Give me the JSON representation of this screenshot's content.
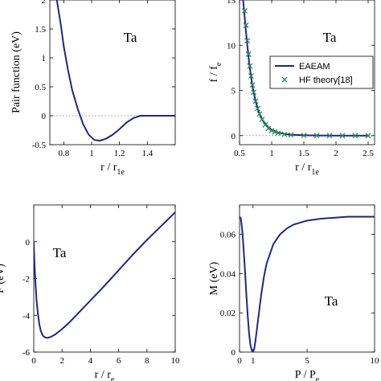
{
  "style": {
    "curve_color": "#1f2a7a",
    "marker_color": "#2e8b57",
    "zero_line_color": "#999999"
  },
  "chart_data": [
    {
      "type": "line",
      "panel": "top-left",
      "annotation": "Ta",
      "xlabel": "r / r",
      "xlabel_sub": "1e",
      "ylabel": "Pair function (eV)",
      "xlim": [
        0.7,
        1.6
      ],
      "ylim": [
        -0.5,
        2
      ],
      "xticks": [
        0.8,
        1,
        1.2,
        1.4
      ],
      "xtick_labels": [
        "0.8",
        "1",
        "1.2",
        "1.4"
      ],
      "yticks": [
        -0.5,
        0,
        0.5,
        1,
        1.5,
        2
      ],
      "ytick_labels": [
        "-0.5",
        "0",
        "0.5",
        "1",
        "1.5",
        "2"
      ],
      "zero_line": true,
      "series": [
        {
          "x": [
            0.75,
            0.78,
            0.8,
            0.83,
            0.86,
            0.9,
            0.94,
            0.98,
            1.02,
            1.06,
            1.1,
            1.15,
            1.2,
            1.25,
            1.3,
            1.35,
            1.38,
            1.4,
            1.5,
            1.6
          ],
          "y": [
            2.0,
            1.55,
            1.2,
            0.8,
            0.45,
            0.12,
            -0.15,
            -0.33,
            -0.42,
            -0.43,
            -0.4,
            -0.33,
            -0.23,
            -0.12,
            -0.04,
            0.0,
            0.0,
            0.0,
            0.0,
            0.0
          ]
        }
      ]
    },
    {
      "type": "line",
      "panel": "top-right",
      "annotation": "Ta",
      "xlabel": "r / r",
      "xlabel_sub": "1e",
      "ylabel": "f / f",
      "ylabel_sub": "e",
      "xlim": [
        0.5,
        2.6
      ],
      "ylim": [
        -1,
        15
      ],
      "xticks": [
        0.5,
        1,
        1.5,
        2,
        2.5
      ],
      "xtick_labels": [
        "0.5",
        "1",
        "1.5",
        "2",
        "2.5"
      ],
      "yticks": [
        0,
        5,
        10,
        15
      ],
      "ytick_labels": [
        "0",
        "5",
        "10",
        "15"
      ],
      "zero_line": true,
      "legend": {
        "position": "center-right"
      },
      "series": [
        {
          "name": "EAEAM",
          "x": [
            0.55,
            0.6,
            0.65,
            0.7,
            0.75,
            0.8,
            0.85,
            0.9,
            0.95,
            1.0,
            1.1,
            1.2,
            1.3,
            1.5,
            1.8,
            2.1,
            2.5
          ],
          "y": [
            15.5,
            11.5,
            8.0,
            5.5,
            3.8,
            2.6,
            1.8,
            1.3,
            0.9,
            0.65,
            0.35,
            0.18,
            0.1,
            0.04,
            0.01,
            0.0,
            0.0
          ]
        },
        {
          "name": "HF theory[18]",
          "x": [
            0.58,
            0.6,
            0.62,
            0.64,
            0.66,
            0.68,
            0.7,
            0.72,
            0.75,
            0.78,
            0.81,
            0.85,
            0.9,
            0.95,
            1.0,
            1.05,
            1.1,
            1.2,
            1.3,
            1.5,
            1.7,
            1.9,
            2.1,
            2.3,
            2.5
          ],
          "y": [
            13.8,
            12.2,
            10.5,
            9.0,
            7.7,
            6.6,
            5.6,
            4.8,
            3.8,
            3.0,
            2.4,
            1.8,
            1.2,
            0.8,
            0.55,
            0.4,
            0.28,
            0.15,
            0.08,
            0.03,
            0.01,
            0.0,
            0.0,
            0.0,
            0.0
          ]
        }
      ]
    },
    {
      "type": "line",
      "panel": "bottom-left",
      "annotation": "Ta",
      "xlabel": "r / r",
      "xlabel_sub": "e",
      "ylabel": "F (eV)",
      "xlim": [
        0,
        10
      ],
      "ylim": [
        -6,
        2
      ],
      "xticks": [
        0,
        2,
        4,
        6,
        8,
        10
      ],
      "xtick_labels": [
        "0",
        "2",
        "4",
        "6",
        "8",
        "10"
      ],
      "yticks": [
        -6,
        -4,
        -2,
        0
      ],
      "ytick_labels": [
        "-6",
        "-4",
        "-2",
        "0"
      ],
      "series": [
        {
          "x": [
            0.0,
            0.05,
            0.1,
            0.2,
            0.3,
            0.4,
            0.5,
            0.6,
            0.7,
            0.8,
            0.9,
            1.0,
            1.2,
            1.5,
            2.0,
            2.5,
            3.0,
            4.0,
            5.0,
            6.0,
            7.0,
            8.0,
            9.0,
            10.0
          ],
          "y": [
            0.0,
            -1.2,
            -2.0,
            -3.2,
            -3.95,
            -4.5,
            -4.85,
            -5.05,
            -5.15,
            -5.2,
            -5.22,
            -5.22,
            -5.18,
            -5.05,
            -4.75,
            -4.4,
            -4.0,
            -3.2,
            -2.4,
            -1.55,
            -0.7,
            0.1,
            0.85,
            1.6
          ]
        }
      ]
    },
    {
      "type": "line",
      "panel": "bottom-right",
      "annotation": "Ta",
      "xlabel": "P / P",
      "xlabel_sub": "e",
      "ylabel": "M (eV)",
      "xlim": [
        0,
        10
      ],
      "ylim": [
        0,
        0.075
      ],
      "xticks": [
        0,
        1,
        5,
        10
      ],
      "xtick_labels": [
        "0",
        "1",
        "5",
        "10"
      ],
      "yticks": [
        0,
        0.02,
        0.04,
        0.06
      ],
      "ytick_labels": [
        "0",
        "0.02",
        "0.04",
        "0.06"
      ],
      "series": [
        {
          "x": [
            0.0,
            0.1,
            0.2,
            0.3,
            0.4,
            0.5,
            0.6,
            0.7,
            0.8,
            0.9,
            1.0,
            1.1,
            1.2,
            1.4,
            1.6,
            1.8,
            2.0,
            2.5,
            3.0,
            3.5,
            4.0,
            5.0,
            6.0,
            7.0,
            8.0,
            9.0,
            10.0
          ],
          "y": [
            0.069,
            0.068,
            0.062,
            0.053,
            0.042,
            0.03,
            0.019,
            0.01,
            0.004,
            0.001,
            0.0,
            0.002,
            0.007,
            0.018,
            0.029,
            0.038,
            0.045,
            0.055,
            0.06,
            0.063,
            0.065,
            0.067,
            0.068,
            0.0685,
            0.069,
            0.069,
            0.069
          ]
        }
      ]
    }
  ]
}
